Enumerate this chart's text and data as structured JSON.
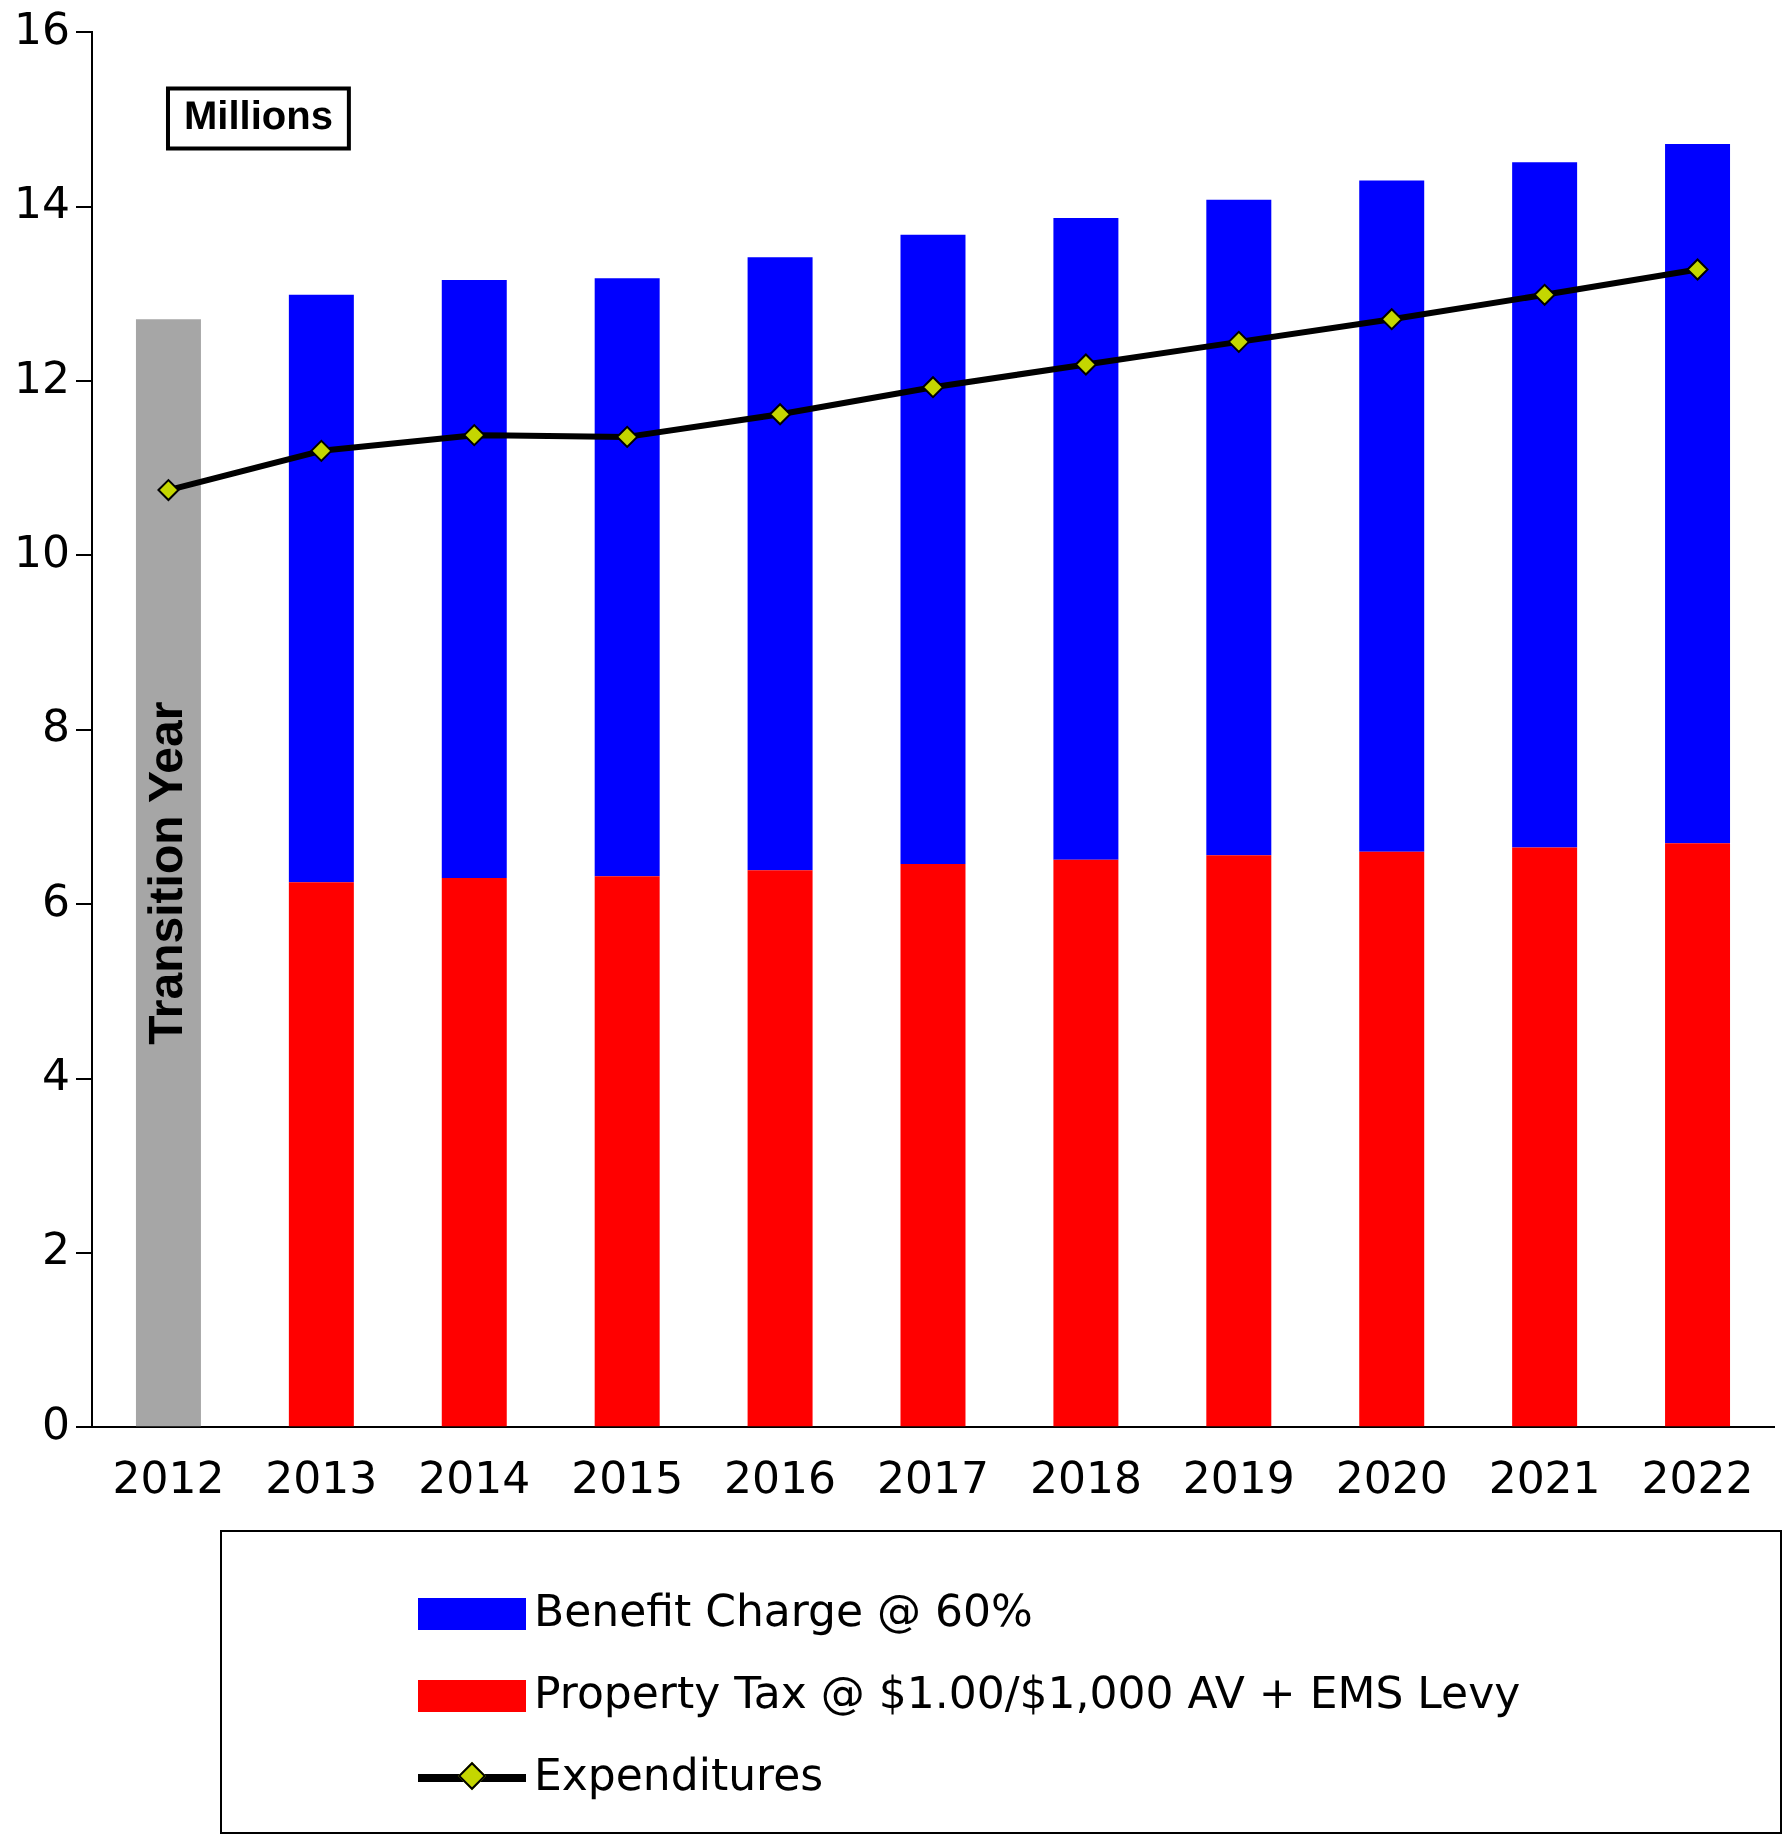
{
  "chart_data": {
    "type": "bar",
    "stacked": true,
    "categories": [
      "2012",
      "2013",
      "2014",
      "2015",
      "2016",
      "2017",
      "2018",
      "2019",
      "2020",
      "2021",
      "2022"
    ],
    "series": [
      {
        "color": "#a6a6a6",
        "values": [
          12.71,
          null,
          null,
          null,
          null,
          null,
          null,
          null,
          null,
          null,
          null
        ]
      },
      {
        "name": "Property Tax @ $1.00/$1,000 AV + EMS Levy",
        "color": "#ff0000",
        "values": [
          null,
          6.25,
          6.3,
          6.32,
          6.39,
          6.46,
          6.51,
          6.56,
          6.6,
          6.65,
          6.7
        ]
      },
      {
        "name": "Benefit Charge @ 60%",
        "color": "#0000ff",
        "values": [
          null,
          6.74,
          6.86,
          6.86,
          7.03,
          7.22,
          7.36,
          7.52,
          7.7,
          7.86,
          8.02
        ]
      },
      {
        "name": "Expenditures",
        "type": "line",
        "color": "#000000",
        "marker": "diamond",
        "values": [
          10.75,
          11.2,
          11.38,
          11.36,
          11.62,
          11.93,
          12.19,
          12.45,
          12.71,
          12.99,
          13.28
        ]
      }
    ],
    "ylim": [
      0,
      16
    ],
    "yticks": [
      0,
      2,
      4,
      6,
      8,
      10,
      12,
      14,
      16
    ],
    "grid": false,
    "legend": "bottom",
    "annotations": [
      "Millions",
      "Transition Year"
    ]
  }
}
